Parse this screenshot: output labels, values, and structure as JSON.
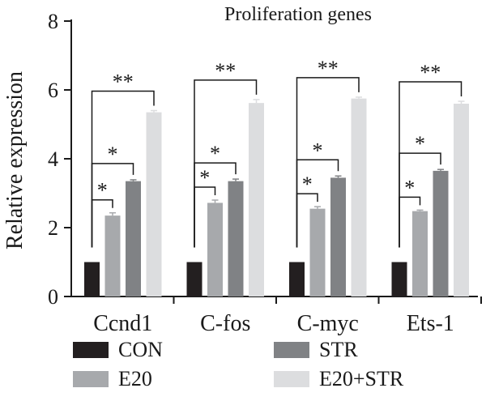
{
  "chart_data": {
    "type": "bar",
    "title": "Proliferation genes",
    "xlabel": "",
    "ylabel": "Relative expression",
    "ylim": [
      0,
      8
    ],
    "yticks": [
      "0",
      "2",
      "4",
      "6",
      "8"
    ],
    "categories": [
      "Ccnd1",
      "C-fos",
      "C-myc",
      "Ets-1"
    ],
    "series": [
      {
        "name": "CON",
        "color": "#231f20",
        "values": [
          1.0,
          1.0,
          1.0,
          1.0
        ],
        "errors": [
          0,
          0,
          0,
          0
        ]
      },
      {
        "name": "E20",
        "color": "#a7a9ac",
        "values": [
          2.35,
          2.72,
          2.55,
          2.48
        ],
        "errors": [
          0.08,
          0.08,
          0.06,
          0.03
        ]
      },
      {
        "name": "STR",
        "color": "#808285",
        "values": [
          3.35,
          3.35,
          3.45,
          3.65
        ],
        "errors": [
          0.04,
          0.06,
          0.05,
          0.04
        ]
      },
      {
        "name": "E20+STR",
        "color": "#dcdddf",
        "values": [
          5.35,
          5.62,
          5.75,
          5.6
        ],
        "errors": [
          0.05,
          0.1,
          0.04,
          0.07
        ]
      }
    ],
    "significance": [
      {
        "category": 0,
        "from": 0,
        "to": 1,
        "label": "*"
      },
      {
        "category": 0,
        "from": 0,
        "to": 2,
        "label": "*"
      },
      {
        "category": 0,
        "from": 0,
        "to": 3,
        "label": "**"
      },
      {
        "category": 1,
        "from": 0,
        "to": 1,
        "label": "*"
      },
      {
        "category": 1,
        "from": 0,
        "to": 2,
        "label": "*"
      },
      {
        "category": 1,
        "from": 0,
        "to": 3,
        "label": "**"
      },
      {
        "category": 2,
        "from": 0,
        "to": 1,
        "label": "*"
      },
      {
        "category": 2,
        "from": 0,
        "to": 2,
        "label": "*"
      },
      {
        "category": 2,
        "from": 0,
        "to": 3,
        "label": "**"
      },
      {
        "category": 3,
        "from": 0,
        "to": 1,
        "label": "*"
      },
      {
        "category": 3,
        "from": 0,
        "to": 2,
        "label": "*"
      },
      {
        "category": 3,
        "from": 0,
        "to": 3,
        "label": "**"
      }
    ],
    "legend": {
      "placement": "bottom",
      "entries": [
        "CON",
        "STR",
        "E20",
        "E20+STR"
      ]
    },
    "grid": false
  }
}
